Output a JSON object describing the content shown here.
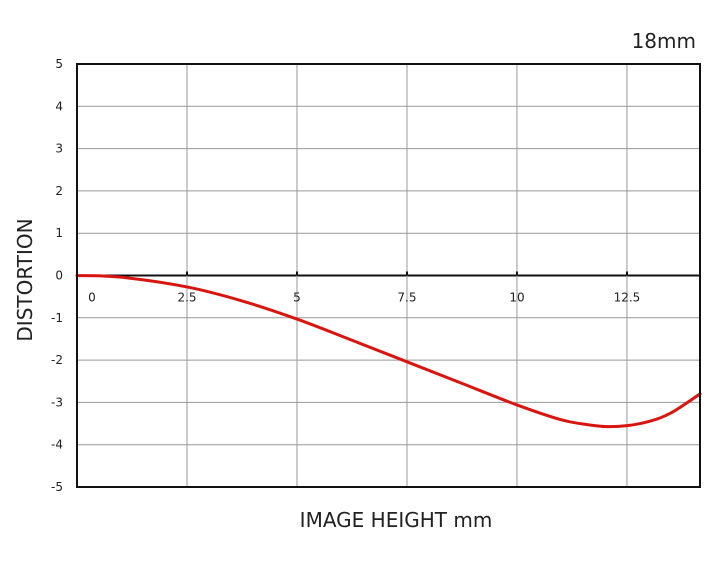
{
  "chart_data": {
    "type": "line",
    "title": "18mm",
    "xlabel": "IMAGE HEIGHT mm",
    "ylabel": "DISTORTION",
    "xlim": [
      0,
      14.16
    ],
    "ylim": [
      -5,
      5
    ],
    "xticks": [
      "0",
      "2.5",
      "5",
      "7.5",
      "10",
      "12.5"
    ],
    "xtick_values": [
      0,
      2.5,
      5,
      7.5,
      10,
      12.5
    ],
    "yticks": [
      "5",
      "4",
      "3",
      "2",
      "1",
      "0",
      "-1",
      "-2",
      "-3",
      "-4",
      "-5"
    ],
    "ytick_values": [
      5,
      4,
      3,
      2,
      1,
      0,
      -1,
      -2,
      -3,
      -4,
      -5
    ],
    "grid": true,
    "series": [
      {
        "color": "#d8150f",
        "x": [
          0,
          1,
          2.5,
          3.75,
          5,
          6.25,
          7.5,
          8.75,
          10,
          11,
          11.5,
          12,
          12.5,
          13,
          13.5,
          14.16
        ],
        "y": [
          0,
          -0.04,
          -0.27,
          -0.6,
          -1.03,
          -1.53,
          -2.04,
          -2.55,
          -3.06,
          -3.41,
          -3.51,
          -3.57,
          -3.55,
          -3.45,
          -3.25,
          -2.8
        ]
      }
    ]
  }
}
